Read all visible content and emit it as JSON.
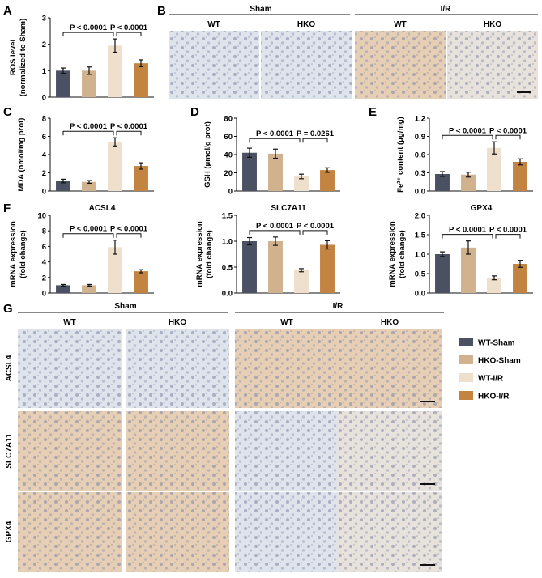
{
  "colors": {
    "wt_sham": "#4b5163",
    "hko_sham": "#d1b28e",
    "wt_ir": "#eee0cc",
    "hko_ir": "#c38441",
    "ihc_neg": "#dfe3ec",
    "ihc_pos": "#e6cfb5",
    "ihc_mid": "#e8e2dc"
  },
  "panel_letters": {
    "A": "A",
    "B": "B",
    "C": "C",
    "D": "D",
    "E": "E",
    "F": "F",
    "G": "G"
  },
  "panel_b": {
    "sham": "Sham",
    "ir": "I/R",
    "groups": [
      "WT",
      "HKO",
      "WT",
      "HKO"
    ],
    "stain": [
      "neg",
      "neg",
      "pos",
      "mid"
    ]
  },
  "panel_g": {
    "sham": "Sham",
    "ir": "I/R",
    "columns": [
      "WT",
      "HKO",
      "WT",
      "HKO"
    ],
    "rows": [
      {
        "label": "ACSL4",
        "stain": [
          "neg",
          "neg",
          "pos",
          "pos"
        ]
      },
      {
        "label": "SLC7A11",
        "stain": [
          "pos",
          "pos",
          "neg",
          "mid"
        ]
      },
      {
        "label": "GPX4",
        "stain": [
          "pos",
          "pos",
          "neg",
          "mid"
        ]
      }
    ]
  },
  "legend": [
    {
      "label": "WT-Sham",
      "color": "#4b5163"
    },
    {
      "label": "HKO-Sham",
      "color": "#d1b28e"
    },
    {
      "label": "WT-I/R",
      "color": "#eee0cc"
    },
    {
      "label": "HKO-I/R",
      "color": "#c38441"
    }
  ],
  "chart_data": [
    {
      "id": "A",
      "type": "bar",
      "title": "",
      "ylabel": [
        "ROS level",
        "(normalized to Sham)"
      ],
      "ylim": [
        0,
        3
      ],
      "yticks": [
        "0",
        "1",
        "2",
        "3"
      ],
      "values": [
        1.0,
        1.0,
        1.95,
        1.28
      ],
      "errors": [
        0.1,
        0.14,
        0.25,
        0.13
      ],
      "comparisons": [
        {
          "from": 0,
          "to": 2,
          "text": "P < 0.0001"
        },
        {
          "from": 2,
          "to": 3,
          "text": "P < 0.0001"
        }
      ]
    },
    {
      "id": "C",
      "type": "bar",
      "title": "",
      "ylabel": [
        "MDA (nmol/mg prot)"
      ],
      "ylim": [
        0,
        8
      ],
      "yticks": [
        "0",
        "2",
        "4",
        "6",
        "8"
      ],
      "values": [
        1.1,
        1.0,
        5.4,
        2.75
      ],
      "errors": [
        0.2,
        0.15,
        0.45,
        0.35
      ],
      "comparisons": [
        {
          "from": 0,
          "to": 2,
          "text": "P < 0.0001"
        },
        {
          "from": 2,
          "to": 3,
          "text": "P < 0.0001"
        }
      ]
    },
    {
      "id": "D",
      "type": "bar",
      "title": "",
      "ylabel": [
        "GSH (μmol/g prot)"
      ],
      "ylim": [
        0,
        80
      ],
      "yticks": [
        "0",
        "20",
        "40",
        "60",
        "80"
      ],
      "values": [
        42,
        41,
        16,
        23
      ],
      "errors": [
        5,
        5,
        2.5,
        2.5
      ],
      "comparisons": [
        {
          "from": 0,
          "to": 2,
          "text": "P < 0.0001"
        },
        {
          "from": 2,
          "to": 3,
          "text": "P = 0.0261"
        }
      ]
    },
    {
      "id": "E",
      "type": "bar",
      "title": "",
      "ylabel": [
        "Fe²⁺ content (μg/mg)"
      ],
      "ylim": [
        0,
        1.2
      ],
      "yticks": [
        "0.0",
        "0.3",
        "0.6",
        "0.9",
        "1.2"
      ],
      "values": [
        0.28,
        0.27,
        0.71,
        0.48
      ],
      "errors": [
        0.04,
        0.04,
        0.1,
        0.05
      ],
      "comparisons": [
        {
          "from": 0,
          "to": 2,
          "text": "P < 0.0001"
        },
        {
          "from": 2,
          "to": 3,
          "text": "P < 0.0001"
        }
      ]
    },
    {
      "id": "F1",
      "type": "bar",
      "title": "ACSL4",
      "ylabel": [
        "mRNA expression",
        "(fold change)"
      ],
      "ylim": [
        0,
        10
      ],
      "yticks": [
        "0",
        "2",
        "4",
        "6",
        "8",
        "10"
      ],
      "values": [
        1.0,
        1.0,
        5.9,
        2.8
      ],
      "errors": [
        0.1,
        0.1,
        0.9,
        0.2
      ],
      "comparisons": [
        {
          "from": 0,
          "to": 2,
          "text": "P < 0.0001"
        },
        {
          "from": 2,
          "to": 3,
          "text": "P < 0.0001"
        }
      ]
    },
    {
      "id": "F2",
      "type": "bar",
      "title": "SLC7A11",
      "ylabel": [
        "mRNA expression",
        "(fold change)"
      ],
      "ylim": [
        0,
        1.5
      ],
      "yticks": [
        "0.0",
        "0.5",
        "1.0",
        "1.5"
      ],
      "values": [
        1.0,
        1.0,
        0.44,
        0.93
      ],
      "errors": [
        0.07,
        0.08,
        0.03,
        0.08
      ],
      "comparisons": [
        {
          "from": 0,
          "to": 2,
          "text": "P < 0.0001"
        },
        {
          "from": 2,
          "to": 3,
          "text": "P < 0.0001"
        }
      ]
    },
    {
      "id": "F3",
      "type": "bar",
      "title": "GPX4",
      "ylabel": [
        "mRNA expression",
        "(fold change)"
      ],
      "ylim": [
        0,
        2.0
      ],
      "yticks": [
        "0.0",
        "0.5",
        "1.0",
        "1.5",
        "2.0"
      ],
      "values": [
        1.0,
        1.17,
        0.39,
        0.75
      ],
      "errors": [
        0.06,
        0.17,
        0.05,
        0.09
      ],
      "comparisons": [
        {
          "from": 0,
          "to": 2,
          "text": "P < 0.0001"
        },
        {
          "from": 2,
          "to": 3,
          "text": "P < 0.0001"
        }
      ]
    }
  ]
}
